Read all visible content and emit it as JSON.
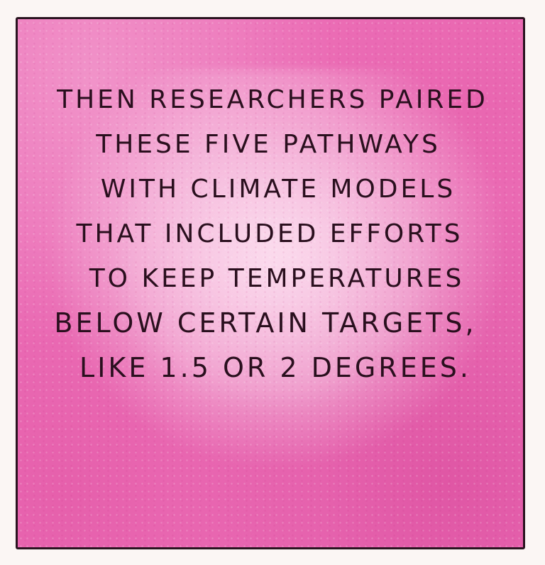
{
  "panel": {
    "background_color": "#ec6fb7",
    "border_color": "#2a1420",
    "text_color": "#2a0f1e",
    "lines": [
      "THEN RESEARCHERS PAIRED",
      "THESE FIVE PATHWAYS",
      "WITH CLIMATE MODELS",
      "THAT INCLUDED EFFORTS",
      "TO KEEP TEMPERATURES",
      "BELOW CERTAIN TARGETS,",
      "LIKE 1.5 OR 2 DEGREES."
    ]
  }
}
